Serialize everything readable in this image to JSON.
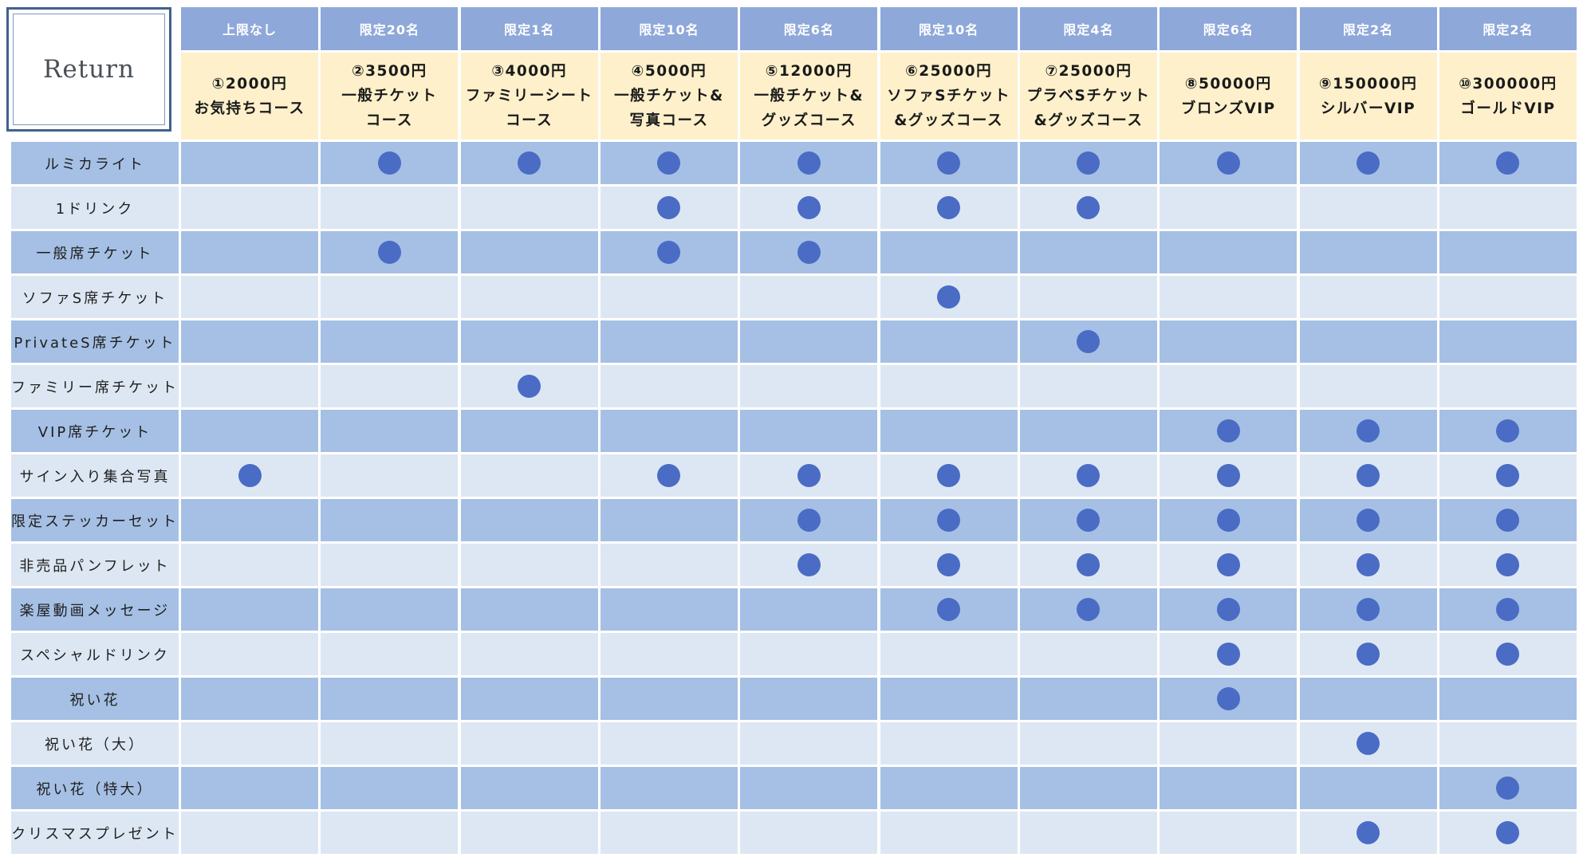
{
  "logo": {
    "text": "Return"
  },
  "columns": [
    {
      "limit": "上限なし",
      "lines": [
        "①2000円",
        "お気持ちコース"
      ]
    },
    {
      "limit": "限定20名",
      "lines": [
        "②3500円",
        "一般チケット",
        "コース"
      ]
    },
    {
      "limit": "限定1名",
      "lines": [
        "③4000円",
        "ファミリーシート",
        "コース"
      ]
    },
    {
      "limit": "限定10名",
      "lines": [
        "④5000円",
        "一般チケット&",
        "写真コース"
      ]
    },
    {
      "limit": "限定6名",
      "lines": [
        "⑤12000円",
        "一般チケット&",
        "グッズコース"
      ]
    },
    {
      "limit": "限定10名",
      "lines": [
        "⑥25000円",
        "ソファSチケット",
        "&グッズコース"
      ]
    },
    {
      "limit": "限定4名",
      "lines": [
        "⑦25000円",
        "プラベSチケット",
        "&グッズコース"
      ]
    },
    {
      "limit": "限定6名",
      "lines": [
        "⑧50000円",
        "ブロンズVIP"
      ]
    },
    {
      "limit": "限定2名",
      "lines": [
        "⑨150000円",
        "シルバーVIP"
      ]
    },
    {
      "limit": "限定2名",
      "lines": [
        "⑩300000円",
        "ゴールドVIP"
      ]
    }
  ],
  "rows": [
    {
      "label": "ルミカライト",
      "included": [
        false,
        true,
        true,
        true,
        true,
        true,
        true,
        true,
        true,
        true
      ]
    },
    {
      "label": "1ドリンク",
      "included": [
        false,
        false,
        false,
        true,
        true,
        true,
        true,
        false,
        false,
        false
      ]
    },
    {
      "label": "一般席チケット",
      "included": [
        false,
        true,
        false,
        true,
        true,
        false,
        false,
        false,
        false,
        false
      ]
    },
    {
      "label": "ソファS席チケット",
      "included": [
        false,
        false,
        false,
        false,
        false,
        true,
        false,
        false,
        false,
        false
      ]
    },
    {
      "label": "PrivateS席チケット",
      "included": [
        false,
        false,
        false,
        false,
        false,
        false,
        true,
        false,
        false,
        false
      ]
    },
    {
      "label": "ファミリー席チケット",
      "included": [
        false,
        false,
        true,
        false,
        false,
        false,
        false,
        false,
        false,
        false
      ]
    },
    {
      "label": "VIP席チケット",
      "included": [
        false,
        false,
        false,
        false,
        false,
        false,
        false,
        true,
        true,
        true
      ]
    },
    {
      "label": "サイン入り集合写真",
      "included": [
        true,
        false,
        false,
        true,
        true,
        true,
        true,
        true,
        true,
        true
      ]
    },
    {
      "label": "限定ステッカーセット",
      "included": [
        false,
        false,
        false,
        false,
        true,
        true,
        true,
        true,
        true,
        true
      ]
    },
    {
      "label": "非売品パンフレット",
      "included": [
        false,
        false,
        false,
        false,
        true,
        true,
        true,
        true,
        true,
        true
      ]
    },
    {
      "label": "楽屋動画メッセージ",
      "included": [
        false,
        false,
        false,
        false,
        false,
        true,
        true,
        true,
        true,
        true
      ]
    },
    {
      "label": "スペシャルドリンク",
      "included": [
        false,
        false,
        false,
        false,
        false,
        false,
        false,
        true,
        true,
        true
      ]
    },
    {
      "label": "祝い花",
      "included": [
        false,
        false,
        false,
        false,
        false,
        false,
        false,
        true,
        false,
        false
      ]
    },
    {
      "label": "祝い花（大）",
      "included": [
        false,
        false,
        false,
        false,
        false,
        false,
        false,
        false,
        true,
        false
      ]
    },
    {
      "label": "祝い花（特大）",
      "included": [
        false,
        false,
        false,
        false,
        false,
        false,
        false,
        false,
        false,
        true
      ]
    },
    {
      "label": "クリスマスプレゼント",
      "included": [
        false,
        false,
        false,
        false,
        false,
        false,
        false,
        false,
        true,
        true
      ]
    }
  ],
  "colors": {
    "limit_header": "#8fa8da",
    "course_header": "#fdf0cb",
    "row_dark": "#a5c0e4",
    "row_light": "#dde7f3",
    "dot": "#4a6cc4",
    "logo_border": "#41618f"
  }
}
